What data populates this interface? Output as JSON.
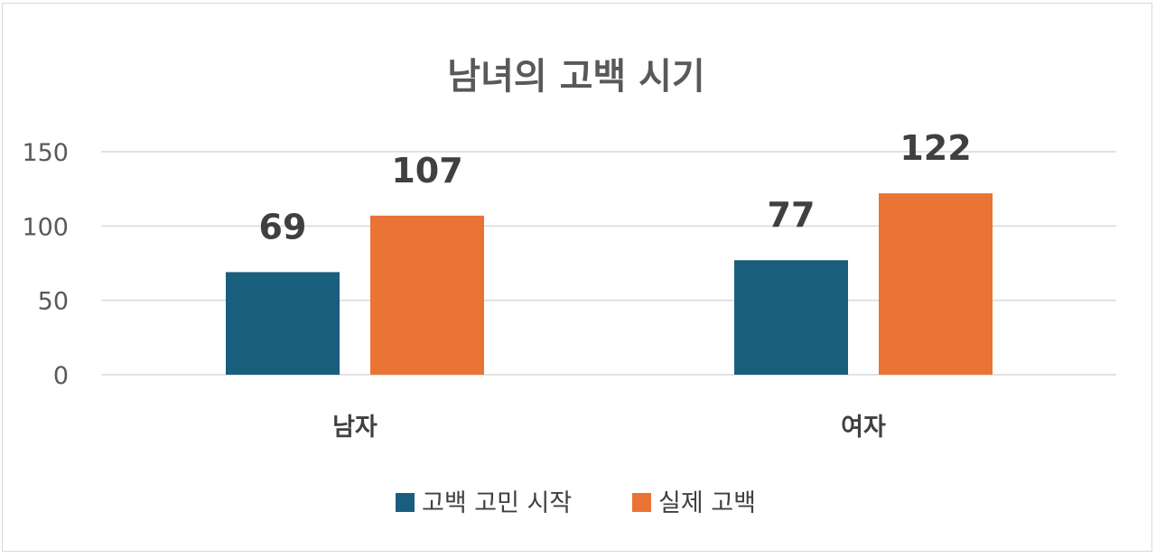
{
  "chart_data": {
    "type": "bar",
    "title": "남녀의 고백 시기",
    "categories": [
      "남자",
      "여자"
    ],
    "series": [
      {
        "name": "고백 고민 시작",
        "values": [
          69,
          77
        ],
        "color": "#1a5e7e"
      },
      {
        "name": "실제 고백",
        "values": [
          107,
          122
        ],
        "color": "#e97435"
      }
    ],
    "ylim": [
      0,
      150
    ],
    "yticks": [
      0,
      50,
      100,
      150
    ],
    "grid": true,
    "legend": "bottom",
    "data_labels": true
  }
}
